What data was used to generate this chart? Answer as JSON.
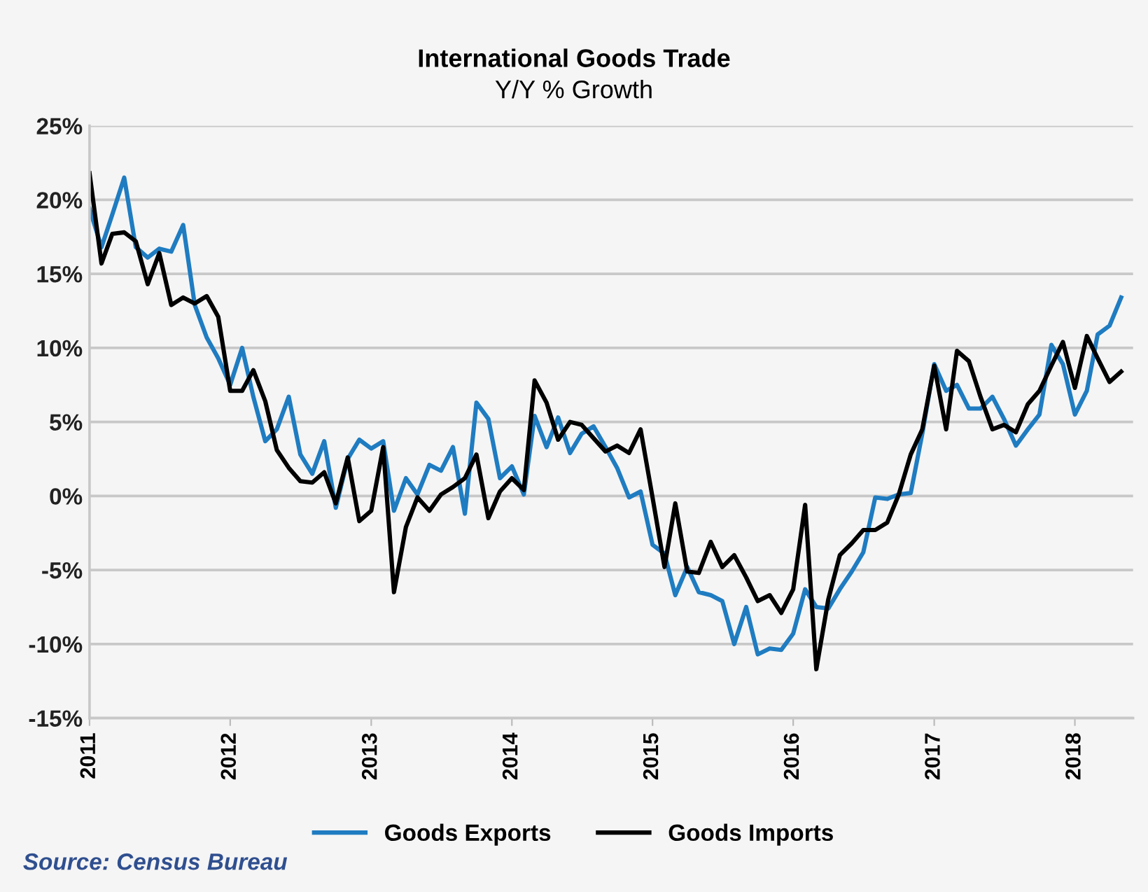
{
  "chart_data": {
    "type": "line",
    "title": "International Goods Trade",
    "subtitle": "Y/Y % Growth",
    "x": [
      "2011-01",
      "2011-02",
      "2011-03",
      "2011-04",
      "2011-05",
      "2011-06",
      "2011-07",
      "2011-08",
      "2011-09",
      "2011-10",
      "2011-11",
      "2011-12",
      "2012-01",
      "2012-02",
      "2012-03",
      "2012-04",
      "2012-05",
      "2012-06",
      "2012-07",
      "2012-08",
      "2012-09",
      "2012-10",
      "2012-11",
      "2012-12",
      "2013-01",
      "2013-02",
      "2013-03",
      "2013-04",
      "2013-05",
      "2013-06",
      "2013-07",
      "2013-08",
      "2013-09",
      "2013-10",
      "2013-11",
      "2013-12",
      "2014-01",
      "2014-02",
      "2014-03",
      "2014-04",
      "2014-05",
      "2014-06",
      "2014-07",
      "2014-08",
      "2014-09",
      "2014-10",
      "2014-11",
      "2014-12",
      "2015-01",
      "2015-02",
      "2015-03",
      "2015-04",
      "2015-05",
      "2015-06",
      "2015-07",
      "2015-08",
      "2015-09",
      "2015-10",
      "2015-11",
      "2015-12",
      "2016-01",
      "2016-02",
      "2016-03",
      "2016-04",
      "2016-05",
      "2016-06",
      "2016-07",
      "2016-08",
      "2016-09",
      "2016-10",
      "2016-11",
      "2016-12",
      "2017-01",
      "2017-02",
      "2017-03",
      "2017-04",
      "2017-05",
      "2017-06",
      "2017-07",
      "2017-08",
      "2017-09",
      "2017-10",
      "2017-11",
      "2017-12",
      "2018-01",
      "2018-02",
      "2018-03",
      "2018-04",
      "2018-05"
    ],
    "series": [
      {
        "name": "Goods Exports",
        "color": "#1f7cc1",
        "values": [
          19.4,
          16.8,
          19.0,
          21.5,
          16.8,
          16.1,
          16.7,
          16.5,
          18.3,
          12.9,
          10.7,
          9.3,
          7.5,
          10.0,
          6.7,
          3.7,
          4.5,
          6.7,
          2.8,
          1.5,
          3.7,
          -0.8,
          2.5,
          3.8,
          3.2,
          3.7,
          -1.0,
          1.2,
          0.1,
          2.1,
          1.7,
          3.3,
          -1.2,
          6.3,
          5.2,
          1.2,
          2.0,
          0.1,
          5.4,
          3.3,
          5.3,
          2.9,
          4.2,
          4.7,
          3.3,
          1.9,
          -0.1,
          0.3,
          -3.3,
          -3.9,
          -6.7,
          -4.8,
          -6.5,
          -6.7,
          -7.1,
          -10.0,
          -7.5,
          -10.7,
          -10.3,
          -10.4,
          -9.3,
          -6.3,
          -7.5,
          -7.6,
          -6.3,
          -5.1,
          -3.8,
          -0.1,
          -0.2,
          0.1,
          0.2,
          4.2,
          8.9,
          7.1,
          7.5,
          5.9,
          5.9,
          6.7,
          5.2,
          3.4,
          4.5,
          5.5,
          10.2,
          8.9,
          5.5,
          7.1,
          10.9,
          11.5,
          13.4
        ]
      },
      {
        "name": "Goods Imports",
        "color": "#000000",
        "values": [
          21.8,
          15.7,
          17.7,
          17.8,
          17.2,
          14.3,
          16.4,
          12.9,
          13.4,
          13.0,
          13.5,
          12.1,
          7.1,
          7.1,
          8.5,
          6.4,
          3.1,
          1.9,
          1.0,
          0.9,
          1.6,
          -0.5,
          2.6,
          -1.7,
          -1.0,
          3.3,
          -6.5,
          -2.1,
          -0.1,
          -1.0,
          0.1,
          0.6,
          1.2,
          2.8,
          -1.5,
          0.3,
          1.2,
          0.4,
          7.8,
          6.3,
          3.8,
          5.0,
          4.8,
          3.9,
          3.0,
          3.4,
          2.9,
          4.5,
          -0.1,
          -4.8,
          -0.5,
          -5.1,
          -5.2,
          -3.1,
          -4.8,
          -4.0,
          -5.5,
          -7.1,
          -6.7,
          -7.9,
          -6.3,
          -0.6,
          -11.7,
          -7.0,
          -4.0,
          -3.2,
          -2.3,
          -2.3,
          -1.8,
          0.1,
          2.8,
          4.5,
          8.8,
          4.5,
          9.8,
          9.1,
          6.7,
          4.5,
          4.8,
          4.3,
          6.2,
          7.1,
          8.8,
          10.4,
          7.3,
          10.8,
          9.3,
          7.7,
          8.4
        ]
      }
    ],
    "xlim": [
      "2011-01",
      "2018-06"
    ],
    "xticks": [
      {
        "value": "2011-01",
        "label": "2011"
      },
      {
        "value": "2012-01",
        "label": "2012"
      },
      {
        "value": "2013-01",
        "label": "2013"
      },
      {
        "value": "2014-01",
        "label": "2014"
      },
      {
        "value": "2015-01",
        "label": "2015"
      },
      {
        "value": "2016-01",
        "label": "2016"
      },
      {
        "value": "2017-01",
        "label": "2017"
      },
      {
        "value": "2018-01",
        "label": "2018"
      }
    ],
    "ylim": [
      -15,
      25
    ],
    "yticks": [
      {
        "value": -15,
        "label": "-15%"
      },
      {
        "value": -10,
        "label": "-10%"
      },
      {
        "value": -5,
        "label": "-5%"
      },
      {
        "value": 0,
        "label": "0%"
      },
      {
        "value": 5,
        "label": "5%"
      },
      {
        "value": 10,
        "label": "10%"
      },
      {
        "value": 15,
        "label": "15%"
      },
      {
        "value": 20,
        "label": "20%"
      },
      {
        "value": 25,
        "label": "25%"
      }
    ],
    "grid": "y",
    "legend": "bottom",
    "marker": "none",
    "line_style": "solid",
    "annotations": [
      "Source: Census Bureau"
    ]
  }
}
